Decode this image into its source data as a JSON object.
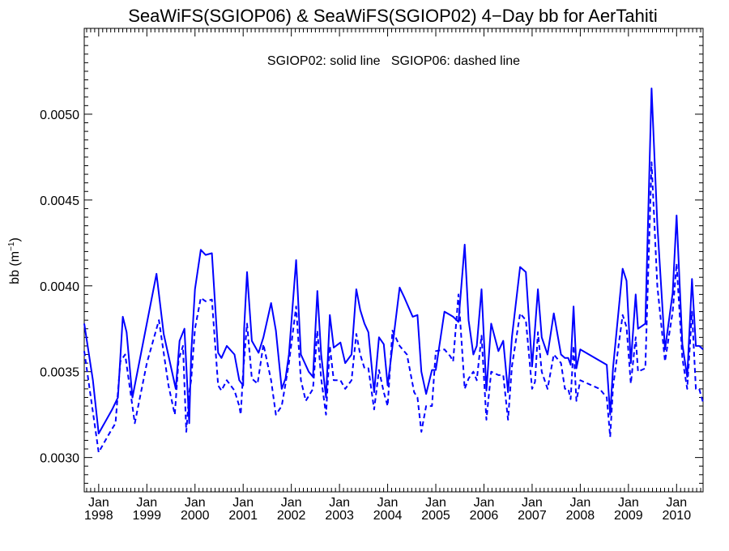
{
  "chart_data": {
    "type": "line",
    "title": "SeaWiFS(SGIOP06) & SeaWiFS(SGIOP02) 4−Day bb for AerTahiti",
    "annotation": "SGIOP02: solid line   SGIOP06: dashed line",
    "xlabel": "",
    "ylabel": "bb (m",
    "ylabel_sup": "−1",
    "ylabel_close": ")",
    "ylim": [
      0.0028,
      0.0055
    ],
    "xlim": [
      1997.7,
      2010.55
    ],
    "y_ticks": [
      {
        "v": 0.003,
        "label": "0.0030"
      },
      {
        "v": 0.0035,
        "label": "0.0035"
      },
      {
        "v": 0.004,
        "label": "0.0040"
      },
      {
        "v": 0.0045,
        "label": "0.0045"
      },
      {
        "v": 0.005,
        "label": "0.0050"
      }
    ],
    "x_ticks": [
      {
        "v": 1998.0,
        "month": "Jan",
        "year": "1998"
      },
      {
        "v": 1999.0,
        "month": "Jan",
        "year": "1999"
      },
      {
        "v": 2000.0,
        "month": "Jan",
        "year": "2000"
      },
      {
        "v": 2001.0,
        "month": "Jan",
        "year": "2001"
      },
      {
        "v": 2002.0,
        "month": "Jan",
        "year": "2002"
      },
      {
        "v": 2003.0,
        "month": "Jan",
        "year": "2003"
      },
      {
        "v": 2004.0,
        "month": "Jan",
        "year": "2004"
      },
      {
        "v": 2005.0,
        "month": "Jan",
        "year": "2005"
      },
      {
        "v": 2006.0,
        "month": "Jan",
        "year": "2006"
      },
      {
        "v": 2007.0,
        "month": "Jan",
        "year": "2007"
      },
      {
        "v": 2008.0,
        "month": "Jan",
        "year": "2008"
      },
      {
        "v": 2009.0,
        "month": "Jan",
        "year": "2009"
      },
      {
        "v": 2010.0,
        "month": "Jan",
        "year": "2010"
      }
    ],
    "line_color": "#0000ff",
    "series": [
      {
        "style": "solid",
        "x": [
          1997.7,
          1997.88,
          1998.0,
          1998.28,
          1998.4,
          1998.5,
          1998.58,
          1998.7,
          1999.2,
          1999.35,
          1999.6,
          1999.68,
          1999.78,
          1999.88,
          1999.92,
          2000.0,
          2000.12,
          2000.22,
          2000.35,
          2000.48,
          2000.55,
          2000.66,
          2000.82,
          2000.92,
          2001.0,
          2001.02,
          2001.08,
          2001.18,
          2001.32,
          2001.42,
          2001.58,
          2001.68,
          2001.8,
          2001.88,
          2001.95,
          2002.1,
          2002.2,
          2002.36,
          2002.45,
          2002.54,
          2002.62,
          2002.72,
          2002.8,
          2002.88,
          2003.02,
          2003.12,
          2003.25,
          2003.35,
          2003.43,
          2003.52,
          2003.6,
          2003.72,
          2003.82,
          2003.92,
          2004.0,
          2004.25,
          2004.35,
          2004.52,
          2004.62,
          2004.7,
          2004.8,
          2004.92,
          2005.0,
          2005.18,
          2005.3,
          2005.36,
          2005.47,
          2005.6,
          2005.68,
          2005.78,
          2005.85,
          2005.95,
          2006.05,
          2006.15,
          2006.3,
          2006.4,
          2006.5,
          2006.58,
          2006.75,
          2006.87,
          2007.0,
          2007.06,
          2007.12,
          2007.2,
          2007.32,
          2007.45,
          2007.6,
          2007.68,
          2007.75,
          2007.8,
          2007.86,
          2007.92,
          2008.0,
          2008.55,
          2008.62,
          2008.68,
          2008.88,
          2008.96,
          2009.05,
          2009.15,
          2009.2,
          2009.35,
          2009.48,
          2009.6,
          2009.76,
          2009.92,
          2010.0,
          2010.12,
          2010.22,
          2010.32,
          2010.4,
          2010.47,
          2010.55
        ],
        "y": [
          0.00378,
          0.00345,
          0.00314,
          0.00328,
          0.00335,
          0.00382,
          0.00373,
          0.00335,
          0.00407,
          0.00372,
          0.0034,
          0.00368,
          0.00375,
          0.0032,
          0.0036,
          0.00398,
          0.00421,
          0.00418,
          0.00419,
          0.00361,
          0.00358,
          0.00365,
          0.0036,
          0.00345,
          0.00342,
          0.00375,
          0.00408,
          0.00368,
          0.00361,
          0.0037,
          0.0039,
          0.00374,
          0.0034,
          0.00346,
          0.0036,
          0.00415,
          0.0036,
          0.0035,
          0.00347,
          0.00397,
          0.0036,
          0.00335,
          0.00383,
          0.00364,
          0.00367,
          0.00355,
          0.0036,
          0.00398,
          0.00386,
          0.00378,
          0.00373,
          0.00338,
          0.0037,
          0.00366,
          0.00342,
          0.00399,
          0.00393,
          0.00382,
          0.00383,
          0.0035,
          0.00337,
          0.00351,
          0.00351,
          0.00385,
          0.00383,
          0.00382,
          0.00379,
          0.00424,
          0.0038,
          0.0036,
          0.00365,
          0.00398,
          0.00339,
          0.00378,
          0.00362,
          0.00368,
          0.00338,
          0.0037,
          0.00411,
          0.00408,
          0.00353,
          0.00375,
          0.00398,
          0.0037,
          0.0036,
          0.00384,
          0.0036,
          0.00358,
          0.00358,
          0.00354,
          0.00388,
          0.00352,
          0.00363,
          0.00354,
          0.00325,
          0.00352,
          0.0041,
          0.00403,
          0.00355,
          0.00395,
          0.00375,
          0.00378,
          0.00515,
          0.00436,
          0.00363,
          0.00396,
          0.00441,
          0.00366,
          0.00347,
          0.00404,
          0.00365,
          0.00365,
          0.00363
        ]
      },
      {
        "style": "dashed",
        "x": [
          1997.7,
          1998.0,
          1998.2,
          1998.35,
          1998.45,
          1998.55,
          1998.65,
          1998.75,
          1999.0,
          1999.25,
          1999.45,
          1999.58,
          1999.66,
          1999.75,
          1999.82,
          1999.88,
          1999.92,
          2000.0,
          2000.12,
          2000.22,
          2000.35,
          2000.48,
          2000.55,
          2000.66,
          2000.82,
          2000.92,
          2000.95,
          2001.0,
          2001.08,
          2001.18,
          2001.3,
          2001.42,
          2001.58,
          2001.68,
          2001.8,
          2001.88,
          2001.95,
          2002.1,
          2002.2,
          2002.3,
          2002.45,
          2002.54,
          2002.62,
          2002.72,
          2002.8,
          2002.88,
          2003.02,
          2003.12,
          2003.25,
          2003.35,
          2003.43,
          2003.52,
          2003.6,
          2003.72,
          2003.82,
          2003.92,
          2004.0,
          2004.1,
          2004.25,
          2004.4,
          2004.55,
          2004.62,
          2004.7,
          2004.8,
          2004.92,
          2005.0,
          2005.18,
          2005.3,
          2005.36,
          2005.47,
          2005.6,
          2005.68,
          2005.78,
          2005.85,
          2005.95,
          2006.05,
          2006.15,
          2006.3,
          2006.4,
          2006.5,
          2006.58,
          2006.75,
          2006.87,
          2007.0,
          2007.06,
          2007.12,
          2007.2,
          2007.32,
          2007.45,
          2007.6,
          2007.68,
          2007.75,
          2007.8,
          2007.86,
          2007.92,
          2008.0,
          2008.4,
          2008.55,
          2008.62,
          2008.68,
          2008.88,
          2008.96,
          2009.05,
          2009.15,
          2009.2,
          2009.35,
          2009.48,
          2009.6,
          2009.76,
          2009.92,
          2010.0,
          2010.12,
          2010.22,
          2010.32,
          2010.4,
          2010.47,
          2010.55
        ],
        "y": [
          0.00362,
          0.00303,
          0.00313,
          0.0032,
          0.00356,
          0.0036,
          0.0034,
          0.0032,
          0.00355,
          0.0038,
          0.00342,
          0.00325,
          0.00357,
          0.00365,
          0.00315,
          0.00338,
          0.00345,
          0.00375,
          0.00393,
          0.00391,
          0.00392,
          0.00342,
          0.00339,
          0.00345,
          0.00339,
          0.0033,
          0.00325,
          0.0035,
          0.00378,
          0.00346,
          0.00343,
          0.00366,
          0.00345,
          0.00325,
          0.0033,
          0.00343,
          0.00355,
          0.00388,
          0.00345,
          0.00333,
          0.0034,
          0.00374,
          0.00346,
          0.00325,
          0.00365,
          0.00345,
          0.00345,
          0.0034,
          0.00345,
          0.00372,
          0.0036,
          0.00352,
          0.00352,
          0.00328,
          0.00351,
          0.00338,
          0.0033,
          0.00374,
          0.00365,
          0.0036,
          0.00338,
          0.00335,
          0.00315,
          0.0033,
          0.0033,
          0.00362,
          0.00363,
          0.00359,
          0.00356,
          0.00395,
          0.0034,
          0.00346,
          0.0035,
          0.00345,
          0.00371,
          0.00322,
          0.0035,
          0.00348,
          0.00348,
          0.00322,
          0.00353,
          0.00384,
          0.0038,
          0.0034,
          0.00344,
          0.00373,
          0.0035,
          0.0034,
          0.0036,
          0.00355,
          0.0034,
          0.0034,
          0.00334,
          0.00365,
          0.00333,
          0.00345,
          0.0034,
          0.00335,
          0.00312,
          0.00341,
          0.00383,
          0.00376,
          0.00343,
          0.0037,
          0.0035,
          0.00352,
          0.00472,
          0.004,
          0.00356,
          0.00385,
          0.00413,
          0.00358,
          0.0034,
          0.00385,
          0.0034,
          0.0034,
          0.00332
        ]
      }
    ]
  }
}
